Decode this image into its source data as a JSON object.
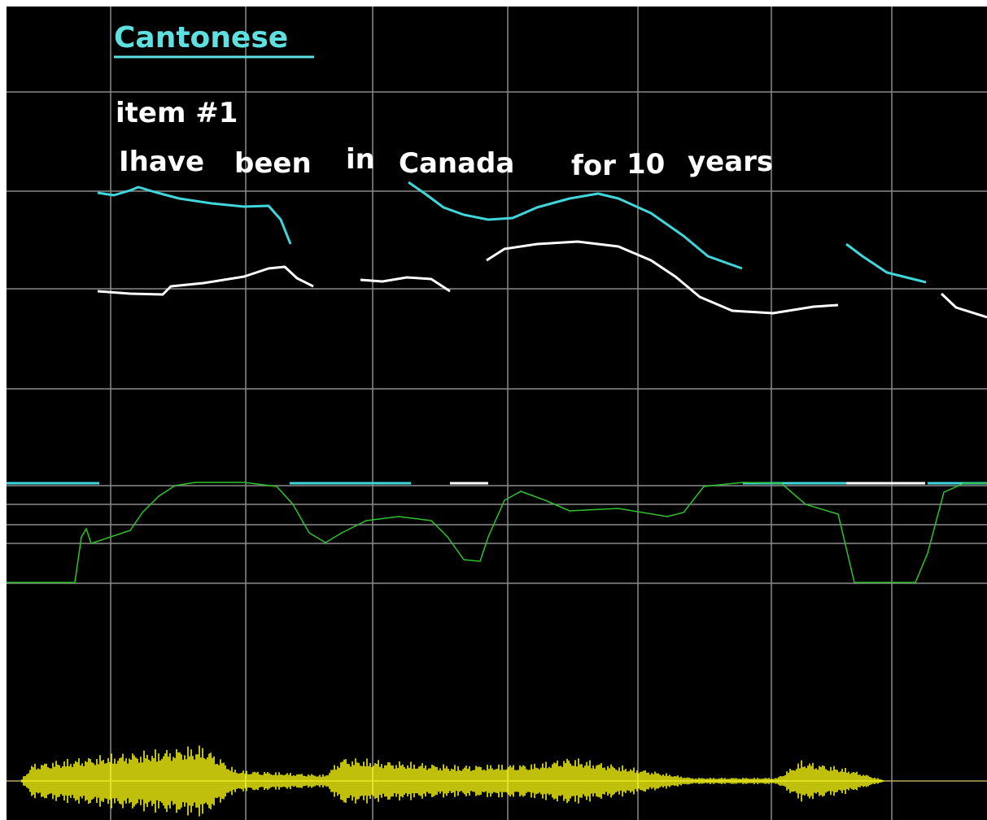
{
  "header": {
    "title": "Cantonese",
    "item": "item #1",
    "sentence_words": [
      "Ihave",
      "been",
      "in",
      "Canada",
      "for",
      "10",
      "years"
    ]
  }
}
